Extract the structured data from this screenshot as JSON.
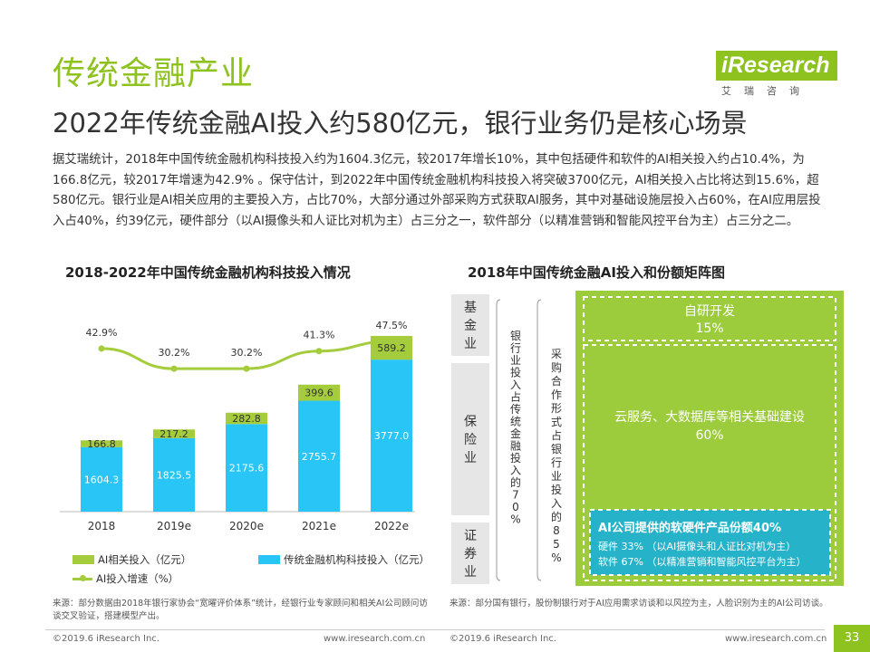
{
  "page": {
    "title": "传统金融产业",
    "subtitle": "2022年传统金融AI投入约580亿元，银行业务仍是核心场景",
    "intro": "据艾瑞统计，2018年中国传统金融机构科技投入约为1604.3亿元，较2017年增长10%，其中包括硬件和软件的AI相关投入约占10.4%，为166.8亿元，较2017年增速为42.9% 。保守估计，到2022年中国传统金融机构科技投入将突破3700亿元，AI相关投入占比将达到15.6%，超580亿元。银行业是AI相关应用的主要投入方，占比70%，大部分通过外部采购方式获取AI服务，其中对基础设施层投入占60%，在AI应用层投入占40%，约39亿元，硬件部分（以AI摄像头和人证比对机为主）占三分之一，软件部分（以精准营销和智能风控平台为主）占三分之二。"
  },
  "logo": {
    "brand": "iResearch",
    "cn": "艾瑞咨询"
  },
  "left_chart": {
    "title": "2018-2022年中国传统金融机构科技投入情况",
    "legend": {
      "ai": "AI相关投入（亿元）",
      "total": "传统金融机构科技投入（亿元）",
      "growth": "AI投入增速（%）"
    },
    "source": "来源：部分数据由2018年银行家协会“宽曜评价体系”统计，经银行业专家顾问和相关AI公司顾问访谈交叉验证，搭建模型产出。"
  },
  "chart_data": {
    "type": "bar",
    "stacked": true,
    "categories": [
      "2018",
      "2019e",
      "2020e",
      "2021e",
      "2022e"
    ],
    "series": [
      {
        "name": "传统金融机构科技投入（亿元）",
        "values": [
          1604.3,
          1825.5,
          2175.6,
          2755.7,
          3777.0
        ],
        "labels": [
          "1604.3",
          "1825.5",
          "2175.6",
          "2755.7",
          "3777.0"
        ],
        "color": "#29c5f6"
      },
      {
        "name": "AI相关投入（亿元）",
        "values": [
          166.8,
          217.2,
          282.8,
          399.6,
          589.2
        ],
        "labels": [
          "166.8",
          "217.2",
          "282.8",
          "399.6",
          "589.2"
        ],
        "color": "#a4cc3c"
      }
    ],
    "line": {
      "name": "AI投入增速（%）",
      "values": [
        42.9,
        30.2,
        30.2,
        41.3,
        47.5
      ],
      "labels": [
        "42.9%",
        "30.2%",
        "30.2%",
        "41.3%",
        "47.5%"
      ],
      "color": "#a4cc3c"
    },
    "ylim": [
      0,
      4500
    ]
  },
  "right_chart": {
    "title": "2018年中国传统金融AI投入和份额矩阵图",
    "sectors": [
      "基金业",
      "保险业",
      "证券业"
    ],
    "bank_label": "银行业投入占传统金融投入的70%",
    "purchase_label": "采购合作形式占银行业投入的85%",
    "self_dev": "自研开发",
    "self_dev_pct": "15%",
    "cloud": "云服务、大数据库等相关基础建设60%",
    "ai_box_title": "AI公司提供的软硬件产品份额40%",
    "ai_box_hw": "硬件 33%  （以AI摄像头和人证比对机为主）",
    "ai_box_sw": "软件 67%  （以精准营销和智能风控平台为主）",
    "source": "来源：部分国有银行，股份制银行对于AI应用需求访谈和以风控为主，人脸识别为主的AI公司访谈。"
  },
  "footer": {
    "left_copyright": "©2019.6 iResearch Inc.",
    "left_url": "www.iresearch.com.cn",
    "right_copyright": "©2019.6 iResearch Inc.",
    "right_url": "www.iresearch.com.cn",
    "page": "33"
  },
  "colors": {
    "accent": "#8dc21f",
    "bar_blue": "#29c5f6",
    "bar_green": "#a4cc3c",
    "matrix_green": "#9ccc3c",
    "sector_gray": "#e6e6e6"
  }
}
